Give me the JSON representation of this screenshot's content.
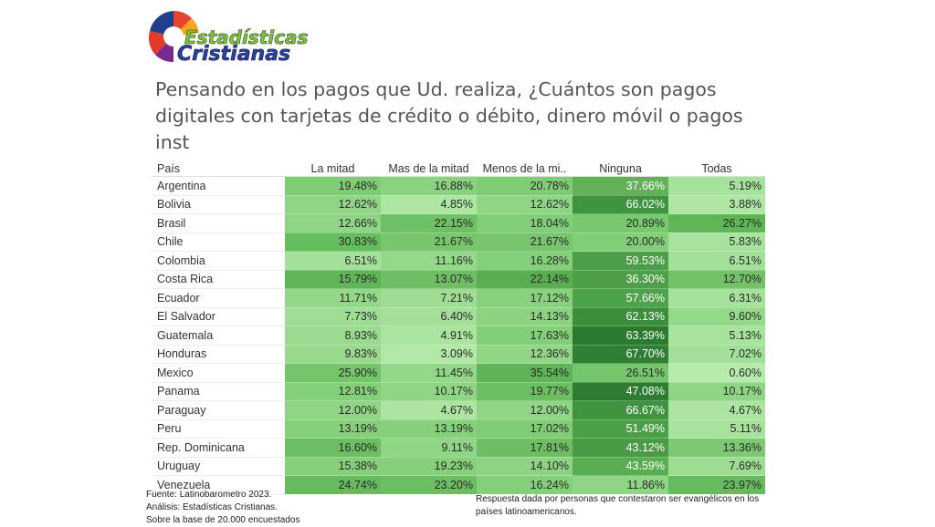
{
  "logo": {
    "line1": "Estadísticas",
    "line2": "Cristianas"
  },
  "title": "Pensando en los pagos que Ud. realiza, ¿Cuántos son pagos digitales con tarjetas de crédito o débito, dinero móvil o pagos inst",
  "footer": {
    "source": "Fuente: Latinobarometro 2023.",
    "analysis": "Análisis: Estadísticas Cristianas.",
    "base": "Sobre la base de 20.000 encuestados",
    "note": "Respuesta dada por personas que contestaron ser evangélicos en los países latinoamericanos."
  },
  "chart_data": {
    "type": "heatmap",
    "title": "Pensando en los pagos que Ud. realiza, ¿Cuántos son pagos digitales con tarjetas de crédito o débito, dinero móvil o pagos inst",
    "row_header": "País",
    "columns": [
      "La mitad",
      "Mas de la mitad",
      "Menos de la mi..",
      "Ninguna",
      "Todas"
    ],
    "rows": [
      {
        "country": "Argentina",
        "values": [
          "19.48%",
          "16.88%",
          "20.78%",
          "37.66%",
          "5.19%"
        ]
      },
      {
        "country": "Bolivia",
        "values": [
          "12.62%",
          "4.85%",
          "12.62%",
          "66.02%",
          "3.88%"
        ]
      },
      {
        "country": "Brasil",
        "values": [
          "12.66%",
          "22.15%",
          "18.04%",
          "20.89%",
          "26.27%"
        ]
      },
      {
        "country": "Chile",
        "values": [
          "30.83%",
          "21.67%",
          "21.67%",
          "20.00%",
          "5.83%"
        ]
      },
      {
        "country": "Colombia",
        "values": [
          "6.51%",
          "11.16%",
          "16.28%",
          "59.53%",
          "6.51%"
        ]
      },
      {
        "country": "Costa Rica",
        "values": [
          "15.79%",
          "13.07%",
          "22.14%",
          "36.30%",
          "12.70%"
        ]
      },
      {
        "country": "Ecuador",
        "values": [
          "11.71%",
          "7.21%",
          "17.12%",
          "57.66%",
          "6.31%"
        ]
      },
      {
        "country": "El Salvador",
        "values": [
          "7.73%",
          "6.40%",
          "14.13%",
          "62.13%",
          "9.60%"
        ]
      },
      {
        "country": "Guatemala",
        "values": [
          "8.93%",
          "4.91%",
          "17.63%",
          "63.39%",
          "5.13%"
        ]
      },
      {
        "country": "Honduras",
        "values": [
          "9.83%",
          "3.09%",
          "12.36%",
          "67.70%",
          "7.02%"
        ]
      },
      {
        "country": "Mexico",
        "values": [
          "25.90%",
          "11.45%",
          "35.54%",
          "26.51%",
          "0.60%"
        ]
      },
      {
        "country": "Panama",
        "values": [
          "12.81%",
          "10.17%",
          "19.77%",
          "47.08%",
          "10.17%"
        ]
      },
      {
        "country": "Paraguay",
        "values": [
          "12.00%",
          "4.67%",
          "12.00%",
          "66.67%",
          "4.67%"
        ]
      },
      {
        "country": "Peru",
        "values": [
          "13.19%",
          "13.19%",
          "17.02%",
          "51.49%",
          "5.11%"
        ]
      },
      {
        "country": "Rep. Dominicana",
        "values": [
          "16.60%",
          "9.11%",
          "17.81%",
          "43.12%",
          "13.36%"
        ]
      },
      {
        "country": "Uruguay",
        "values": [
          "15.38%",
          "19.23%",
          "14.10%",
          "43.59%",
          "7.69%"
        ]
      },
      {
        "country": "Venezuela",
        "values": [
          "24.74%",
          "23.20%",
          "16.24%",
          "11.86%",
          "23.97%"
        ]
      }
    ],
    "cell_colors": [
      [
        "#7ecc74",
        "#8ad280",
        "#7ecc74",
        "#62b058",
        "#a6e29b"
      ],
      [
        "#8fd585",
        "#ace6a1",
        "#8fd585",
        "#3f9440",
        "#aee7a3"
      ],
      [
        "#8fd585",
        "#6dc063",
        "#82cd77",
        "#78c86d",
        "#5eb657"
      ],
      [
        "#66bd5e",
        "#77c56c",
        "#77c56c",
        "#82cd77",
        "#a7e39c"
      ],
      [
        "#a4e09a",
        "#94d889",
        "#84cf79",
        "#4b9f48",
        "#a4e09a"
      ],
      [
        "#60b559",
        "#6fbe65",
        "#5aae52",
        "#4f9f4a",
        "#73c268"
      ],
      [
        "#93d788",
        "#9fdd95",
        "#88d17d",
        "#4da349",
        "#a6e29b"
      ],
      [
        "#9fdd95",
        "#a3df98",
        "#8cd381",
        "#3b8f3c",
        "#95d98a"
      ],
      [
        "#9bdb90",
        "#aae5a0",
        "#83ce78",
        "#2a7a30",
        "#a7e39c"
      ],
      [
        "#98d98d",
        "#b1e8a7",
        "#90d686",
        "#2f8034",
        "#a2df97"
      ],
      [
        "#75c66a",
        "#93d788",
        "#5fb458",
        "#75c66a",
        "#b6ebac"
      ],
      [
        "#84cf79",
        "#8fd585",
        "#6cbe62",
        "#2d7c31",
        "#8fd585"
      ],
      [
        "#8fd585",
        "#abe5a1",
        "#8fd585",
        "#3f9440",
        "#abe5a1"
      ],
      [
        "#86d07b",
        "#86d07b",
        "#80cc76",
        "#49a046",
        "#a7e39c"
      ],
      [
        "#6dbd63",
        "#8fd585",
        "#6dbd63",
        "#4a9a46",
        "#7cc971"
      ],
      [
        "#86d07b",
        "#86d07b",
        "#8ed384",
        "#5aae52",
        "#9edc93"
      ],
      [
        "#67bb5f",
        "#6bbe62",
        "#84cf79",
        "#8fd585",
        "#67bb5f"
      ]
    ]
  }
}
